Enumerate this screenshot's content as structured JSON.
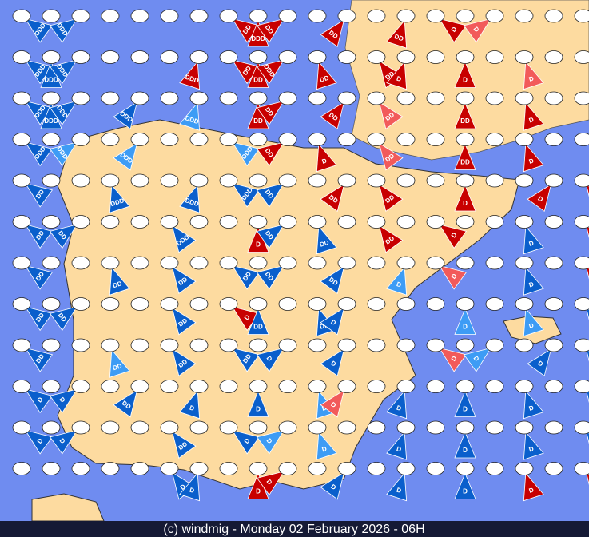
{
  "footer": "(c) windmig - Monday 02 February 2026 - 06H",
  "symbols": [
    [
      {
        "label": "DDD",
        "color": "#0a5fcc"
      },
      {
        "label": "DDD",
        "color": "#0a5fcc"
      },
      {
        "label": "DD",
        "color": "#c80000"
      },
      {
        "label": "DDD",
        "color": "#c80000"
      },
      {
        "label": "DD",
        "color": "#c80000"
      },
      {
        "label": "DD",
        "color": "#c80000"
      },
      {
        "label": "DD",
        "color": "#c80000"
      },
      {
        "label": "D",
        "color": "#c80000"
      },
      {
        "label": "D",
        "color": "#f25a5a"
      }
    ],
    [
      {
        "label": "DDD",
        "color": "#0a5fcc"
      },
      {
        "label": "DDD",
        "color": "#0a5fcc"
      },
      {
        "label": "DDD",
        "color": "#0a5fcc"
      },
      {
        "label": "DDD",
        "color": "#c80000"
      },
      {
        "label": "DD",
        "color": "#c80000"
      },
      {
        "label": "DD",
        "color": "#c80000"
      },
      {
        "label": "DDD",
        "color": "#c80000"
      },
      {
        "label": "DD",
        "color": "#c80000"
      },
      {
        "label": "DD",
        "color": "#c80000"
      },
      {
        "label": "D",
        "color": "#c80000"
      },
      {
        "label": "D",
        "color": "#c80000"
      },
      {
        "label": "D",
        "color": "#f25a5a"
      }
    ],
    [
      {
        "label": "DDD",
        "color": "#0a5fcc"
      },
      {
        "label": "DDD",
        "color": "#0a5fcc"
      },
      {
        "label": "DDD",
        "color": "#0a5fcc"
      },
      {
        "label": "DDD",
        "color": "#0a5fcc"
      },
      {
        "label": "DDD",
        "color": "#3d9cf5"
      },
      {
        "label": "DD",
        "color": "#c80000"
      },
      {
        "label": "DD",
        "color": "#c80000"
      },
      {
        "label": "DD",
        "color": "#c80000"
      },
      {
        "label": "DD",
        "color": "#f25a5a"
      },
      {
        "label": "DD",
        "color": "#c80000"
      },
      {
        "label": "D",
        "color": "#c80000"
      }
    ],
    [
      {
        "label": "DDD",
        "color": "#0a5fcc"
      },
      {
        "label": "DDD",
        "color": "#3d9cf5"
      },
      {
        "label": "DDD",
        "color": "#3d9cf5"
      },
      {
        "label": "DDD",
        "color": "#3d9cf5"
      },
      {
        "label": "DD",
        "color": "#c80000"
      },
      {
        "label": "D",
        "color": "#c80000"
      },
      {
        "label": "DD",
        "color": "#f25a5a"
      },
      {
        "label": "DD",
        "color": "#c80000"
      },
      {
        "label": "D",
        "color": "#c80000"
      }
    ],
    [
      {
        "label": "DD",
        "color": "#0a5fcc"
      },
      {
        "label": "DDD",
        "color": "#0a5fcc"
      },
      {
        "label": "DDD",
        "color": "#0a5fcc"
      },
      {
        "label": "DDD",
        "color": "#0a5fcc"
      },
      {
        "label": "DD",
        "color": "#0a5fcc"
      },
      {
        "label": "DD",
        "color": "#c80000"
      },
      {
        "label": "DD",
        "color": "#c80000"
      },
      {
        "label": "D",
        "color": "#c80000"
      },
      {
        "label": "D",
        "color": "#c80000"
      },
      {
        "label": "D",
        "color": "#c80000"
      }
    ],
    [
      {
        "label": "DD",
        "color": "#0a5fcc"
      },
      {
        "label": "DD",
        "color": "#0a5fcc"
      },
      {
        "label": "DDD",
        "color": "#0a5fcc"
      },
      {
        "label": "D",
        "color": "#c80000"
      },
      {
        "label": "DD",
        "color": "#0a5fcc"
      },
      {
        "label": "DD",
        "color": "#0a5fcc"
      },
      {
        "label": "DD",
        "color": "#c80000"
      },
      {
        "label": "D",
        "color": "#c80000"
      },
      {
        "label": "D",
        "color": "#0a5fcc"
      },
      {
        "label": "D",
        "color": "#c80000"
      }
    ],
    [
      {
        "label": "DD",
        "color": "#0a5fcc"
      },
      {
        "label": "DD",
        "color": "#0a5fcc"
      },
      {
        "label": "DD",
        "color": "#0a5fcc"
      },
      {
        "label": "DD",
        "color": "#0a5fcc"
      },
      {
        "label": "DD",
        "color": "#0a5fcc"
      },
      {
        "label": "DD",
        "color": "#0a5fcc"
      },
      {
        "label": "D",
        "color": "#3d9cf5"
      },
      {
        "label": "D",
        "color": "#f25a5a"
      },
      {
        "label": "D",
        "color": "#0a5fcc"
      },
      {
        "label": "D",
        "color": "#c80000"
      }
    ],
    [
      {
        "label": "DD",
        "color": "#0a5fcc"
      },
      {
        "label": "DD",
        "color": "#0a5fcc"
      },
      {
        "label": "DD",
        "color": "#0a5fcc"
      },
      {
        "label": "D",
        "color": "#c80000"
      },
      {
        "label": "DD",
        "color": "#0a5fcc"
      },
      {
        "label": "DD",
        "color": "#0a5fcc"
      },
      {
        "label": "D",
        "color": "#0a5fcc"
      },
      {
        "label": "D",
        "color": "#3d9cf5"
      },
      {
        "label": "D",
        "color": "#3d9cf5"
      },
      {
        "label": "D",
        "color": "#0a5fcc"
      }
    ],
    [
      {
        "label": "DD",
        "color": "#0a5fcc"
      },
      {
        "label": "DD",
        "color": "#3d9cf5"
      },
      {
        "label": "DD",
        "color": "#0a5fcc"
      },
      {
        "label": "DD",
        "color": "#0a5fcc"
      },
      {
        "label": "D",
        "color": "#0a5fcc"
      },
      {
        "label": "D",
        "color": "#0a5fcc"
      },
      {
        "label": "D",
        "color": "#f25a5a"
      },
      {
        "label": "D",
        "color": "#3d9cf5"
      },
      {
        "label": "D",
        "color": "#0a5fcc"
      },
      {
        "label": "D",
        "color": "#0a5fcc"
      }
    ],
    [
      {
        "label": "D",
        "color": "#0a5fcc"
      },
      {
        "label": "D",
        "color": "#0a5fcc"
      },
      {
        "label": "DD",
        "color": "#0a5fcc"
      },
      {
        "label": "D",
        "color": "#0a5fcc"
      },
      {
        "label": "D",
        "color": "#0a5fcc"
      },
      {
        "label": "D",
        "color": "#3d9cf5"
      },
      {
        "label": "D",
        "color": "#f25a5a"
      },
      {
        "label": "D",
        "color": "#0a5fcc"
      },
      {
        "label": "D",
        "color": "#0a5fcc"
      },
      {
        "label": "D",
        "color": "#0a5fcc"
      },
      {
        "label": "D",
        "color": "#0a5fcc"
      }
    ],
    [
      {
        "label": "D",
        "color": "#0a5fcc"
      },
      {
        "label": "D",
        "color": "#0a5fcc"
      },
      {
        "label": "DD",
        "color": "#0a5fcc"
      },
      {
        "label": "D",
        "color": "#0a5fcc"
      },
      {
        "label": "D",
        "color": "#3d9cf5"
      },
      {
        "label": "D",
        "color": "#3d9cf5"
      },
      {
        "label": "D",
        "color": "#0a5fcc"
      },
      {
        "label": "D",
        "color": "#0a5fcc"
      },
      {
        "label": "D",
        "color": "#0a5fcc"
      },
      {
        "label": "D",
        "color": "#0a5fcc"
      }
    ],
    [
      {
        "label": "D",
        "color": "#0a5fcc"
      },
      {
        "label": "D",
        "color": "#0a5fcc"
      },
      {
        "label": "D",
        "color": "#c80000"
      },
      {
        "label": "D",
        "color": "#c80000"
      },
      {
        "label": "D",
        "color": "#0a5fcc"
      },
      {
        "label": "D",
        "color": "#0a5fcc"
      },
      {
        "label": "D",
        "color": "#0a5fcc"
      },
      {
        "label": "D",
        "color": "#c80000"
      },
      {
        "label": "D",
        "color": "#c80000"
      }
    ]
  ]
}
